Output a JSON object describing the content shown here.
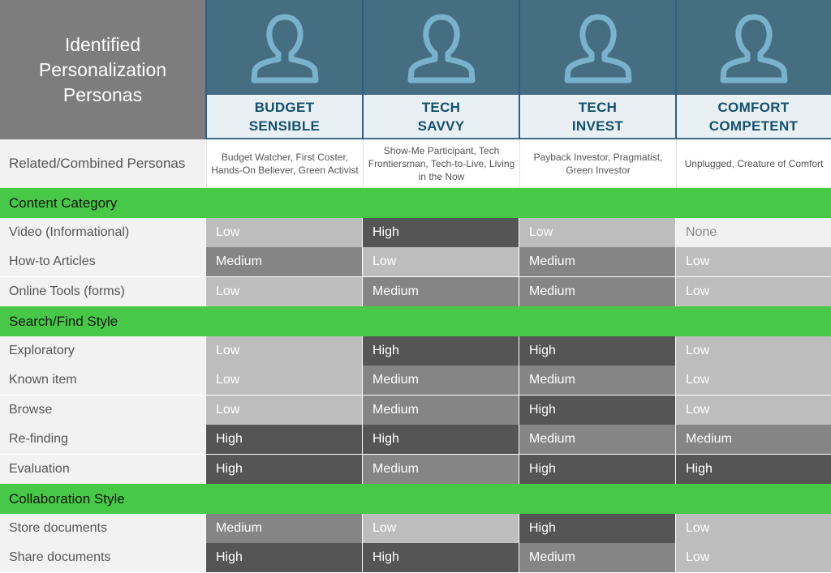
{
  "title": [
    "Identified",
    "Personalization",
    "Personas"
  ],
  "personas": [
    {
      "icon": "person-icon",
      "name": [
        "BUDGET",
        "SENSIBLE"
      ],
      "related": "Budget Watcher, First Coster, Hands-On Believer, Green Activist"
    },
    {
      "icon": "person-icon",
      "name": [
        "TECH",
        "SAVVY"
      ],
      "related": "Show-Me Participant, Tech Frontiersman, Tech-to-Live, Living in the Now"
    },
    {
      "icon": "person-icon",
      "name": [
        "TECH",
        "INVEST"
      ],
      "related": "Payback Investor, Pragmatist, Green Investor"
    },
    {
      "icon": "person-icon",
      "name": [
        "COMFORT",
        "COMPETENT"
      ],
      "related": "Unplugged, Creature of Comfort"
    }
  ],
  "related_label": "Related/Combined Personas",
  "sections": [
    {
      "title": "Content Category",
      "rows": [
        {
          "label": "Video (Informational)",
          "values": [
            "Low",
            "High",
            "Low",
            "None"
          ]
        },
        {
          "label": "How-to Articles",
          "values": [
            "Medium",
            "Low",
            "Medium",
            "Low"
          ]
        },
        {
          "label": "Online Tools (forms)",
          "values": [
            "Low",
            "Medium",
            "Medium",
            "Low"
          ]
        }
      ]
    },
    {
      "title": "Search/Find Style",
      "rows": [
        {
          "label": "Exploratory",
          "values": [
            "Low",
            "High",
            "High",
            "Low"
          ]
        },
        {
          "label": "Known item",
          "values": [
            "Low",
            "Medium",
            "Medium",
            "Low"
          ]
        },
        {
          "label": "Browse",
          "values": [
            "Low",
            "Medium",
            "High",
            "Low"
          ]
        },
        {
          "label": "Re-finding",
          "values": [
            "High",
            "High",
            "Medium",
            "Medium"
          ]
        },
        {
          "label": "Evaluation",
          "values": [
            "High",
            "Medium",
            "High",
            "High"
          ]
        }
      ]
    },
    {
      "title": "Collaboration Style",
      "rows": [
        {
          "label": "Store documents",
          "values": [
            "Medium",
            "Low",
            "High",
            "Low"
          ]
        },
        {
          "label": "Share documents",
          "values": [
            "High",
            "High",
            "Medium",
            "Low"
          ]
        }
      ]
    }
  ],
  "colors": {
    "header_blue": "#466e82",
    "persona_text": "#14506e",
    "section_green": "#47c947",
    "level_high": "#555555",
    "level_medium": "#858585",
    "level_low": "#bdbdbd",
    "level_none": "#f0f0f0"
  }
}
